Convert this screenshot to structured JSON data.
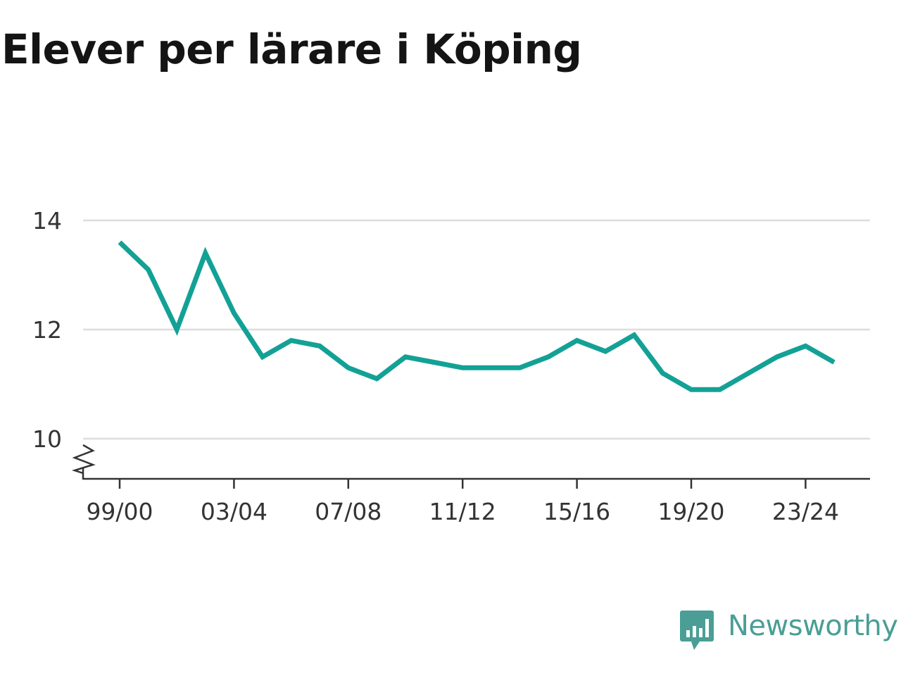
{
  "title": "Elever per lärare i Köping",
  "colors": {
    "line": "#13a196",
    "grid": "#dddddd",
    "axis": "#333333",
    "brand": "#4a9e95"
  },
  "brand": {
    "name": "Newsworthy",
    "icon": "bar-chart-speech-bubble-icon"
  },
  "chart_data": {
    "type": "line",
    "title": "Elever per lärare i Köping",
    "xlabel": "",
    "ylabel": "",
    "ylim": [
      9.3,
      14
    ],
    "y_ticks": [
      "10",
      "12",
      "14"
    ],
    "axis_break": true,
    "grid": true,
    "x_tick_labels": [
      "99/00",
      "03/04",
      "07/08",
      "11/12",
      "15/16",
      "19/20",
      "23/24"
    ],
    "series": [
      {
        "x": [
          "99/00",
          "00/01",
          "01/02",
          "02/03",
          "03/04",
          "04/05",
          "05/06",
          "06/07",
          "07/08",
          "08/09",
          "09/10",
          "10/11",
          "11/12",
          "12/13",
          "13/14",
          "14/15",
          "15/16",
          "16/17",
          "17/18",
          "18/19",
          "19/20",
          "20/21",
          "21/22",
          "22/23",
          "23/24",
          "24/25"
        ],
        "values": [
          13.6,
          13.1,
          12.0,
          13.4,
          12.3,
          11.5,
          11.8,
          11.7,
          11.3,
          11.1,
          11.5,
          11.4,
          11.3,
          11.3,
          11.3,
          11.5,
          11.8,
          11.6,
          11.9,
          11.2,
          10.9,
          10.9,
          11.2,
          11.5,
          11.7,
          11.4
        ]
      }
    ]
  }
}
